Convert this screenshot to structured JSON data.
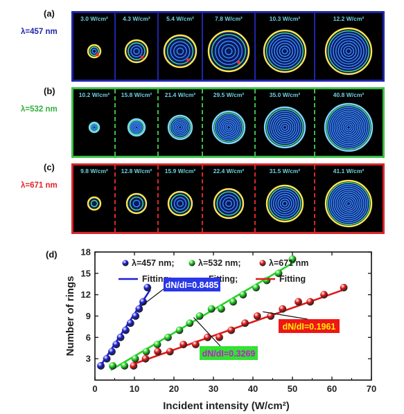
{
  "panels": [
    {
      "letter": "(a)",
      "wavelength": "λ=457 nm",
      "color": "#1f25a8",
      "text_color": "#1f25a8",
      "separator_style": "solid",
      "intensities": [
        "3.0 W/cm²",
        "4.3 W/cm²",
        "5.4 W/cm²",
        "7.8 W/cm²",
        "10.3 W/cm²",
        "12.2 W/cm²"
      ]
    },
    {
      "letter": "(b)",
      "wavelength": "λ=532 nm",
      "color": "#3dbd46",
      "text_color": "#2fae3a",
      "separator_style": "dashed",
      "intensities": [
        "10.2 W/cm²",
        "15.8 W/cm²",
        "21.4 W/cm²",
        "29.5 W/cm²",
        "35.0 W/cm²",
        "40.8 W/cm²"
      ]
    },
    {
      "letter": "(c)",
      "wavelength": "λ=671 nm",
      "color": "#d9262b",
      "text_color": "#e0242a",
      "separator_style": "dashed",
      "intensities": [
        "9.8 W/cm²",
        "12.8 W/cm²",
        "15.9 W/cm²",
        "22.4 W/cm²",
        "31.5 W/cm²",
        "41.1 W/cm²"
      ]
    }
  ],
  "chart_letter": "(d)",
  "chart_data": {
    "type": "scatter",
    "xlabel": "Incident intensity (W/cm²)",
    "ylabel": "Number of rings",
    "xlim": [
      0,
      70
    ],
    "ylim": [
      0,
      18
    ],
    "xticks": [
      0,
      10,
      20,
      30,
      40,
      50,
      60,
      70
    ],
    "yticks": [
      3,
      6,
      9,
      12,
      15,
      18
    ],
    "legend": [
      {
        "marker_label": "λ=457 nm;",
        "line_label": "Fitting;",
        "color": "#1a1fd1"
      },
      {
        "marker_label": "λ=532 nm;",
        "line_label": "Fitting;",
        "color": "#22d422"
      },
      {
        "marker_label": "λ=671 nm",
        "line_label": "Fitting",
        "color": "#e01818"
      }
    ],
    "series": [
      {
        "name": "λ=457 nm",
        "color": "#1a1fd1",
        "x": [
          1.5,
          3.0,
          4.3,
          5.4,
          6.5,
          7.8,
          9.0,
          10.3,
          11.2,
          12.2,
          13.3
        ],
        "y": [
          2,
          3,
          4,
          5,
          6,
          7,
          8,
          9,
          10,
          11,
          13
        ],
        "fit": {
          "x": [
            1.3,
            14.0
          ],
          "y": [
            1.9,
            12.7
          ]
        }
      },
      {
        "name": "λ=532 nm",
        "color": "#22d422",
        "x": [
          4.5,
          7.5,
          10.2,
          13.0,
          15.8,
          18.5,
          21.4,
          24.0,
          26.5,
          29.5,
          32.0,
          35.0,
          37.5,
          40.8,
          43.5,
          46.5,
          50.0
        ],
        "y": [
          2,
          2,
          3,
          4,
          5,
          6,
          7,
          8,
          9,
          10,
          10,
          11,
          12,
          13,
          14,
          15,
          17
        ],
        "fit": {
          "x": [
            4.0,
            50.5
          ],
          "y": [
            1.4,
            16.6
          ]
        }
      },
      {
        "name": "λ=671 nm",
        "color": "#e01818",
        "x": [
          9.8,
          12.8,
          15.9,
          19.0,
          22.4,
          25.5,
          28.5,
          31.5,
          34.5,
          38.0,
          41.1,
          44.5,
          47.5,
          51.5,
          54.5,
          58.0,
          63.0
        ],
        "y": [
          2,
          3,
          4,
          4,
          5,
          5,
          6,
          6,
          7,
          8,
          9,
          9,
          10,
          11,
          11,
          12,
          13
        ],
        "fit": {
          "x": [
            9.5,
            63.5
          ],
          "y": [
            2.2,
            12.8
          ]
        }
      }
    ],
    "annotations": [
      {
        "text": "dN/dI=0.8485",
        "bg": "#2a37e8",
        "fg": "#ffffff",
        "color_key": 0
      },
      {
        "text": "dN/dI=0.3269",
        "bg": "#33e233",
        "fg": "#c21ad1",
        "color_key": 1
      },
      {
        "text": "dN/dI=0.1961",
        "bg": "#ef1616",
        "fg": "#fff200",
        "color_key": 2
      }
    ]
  }
}
